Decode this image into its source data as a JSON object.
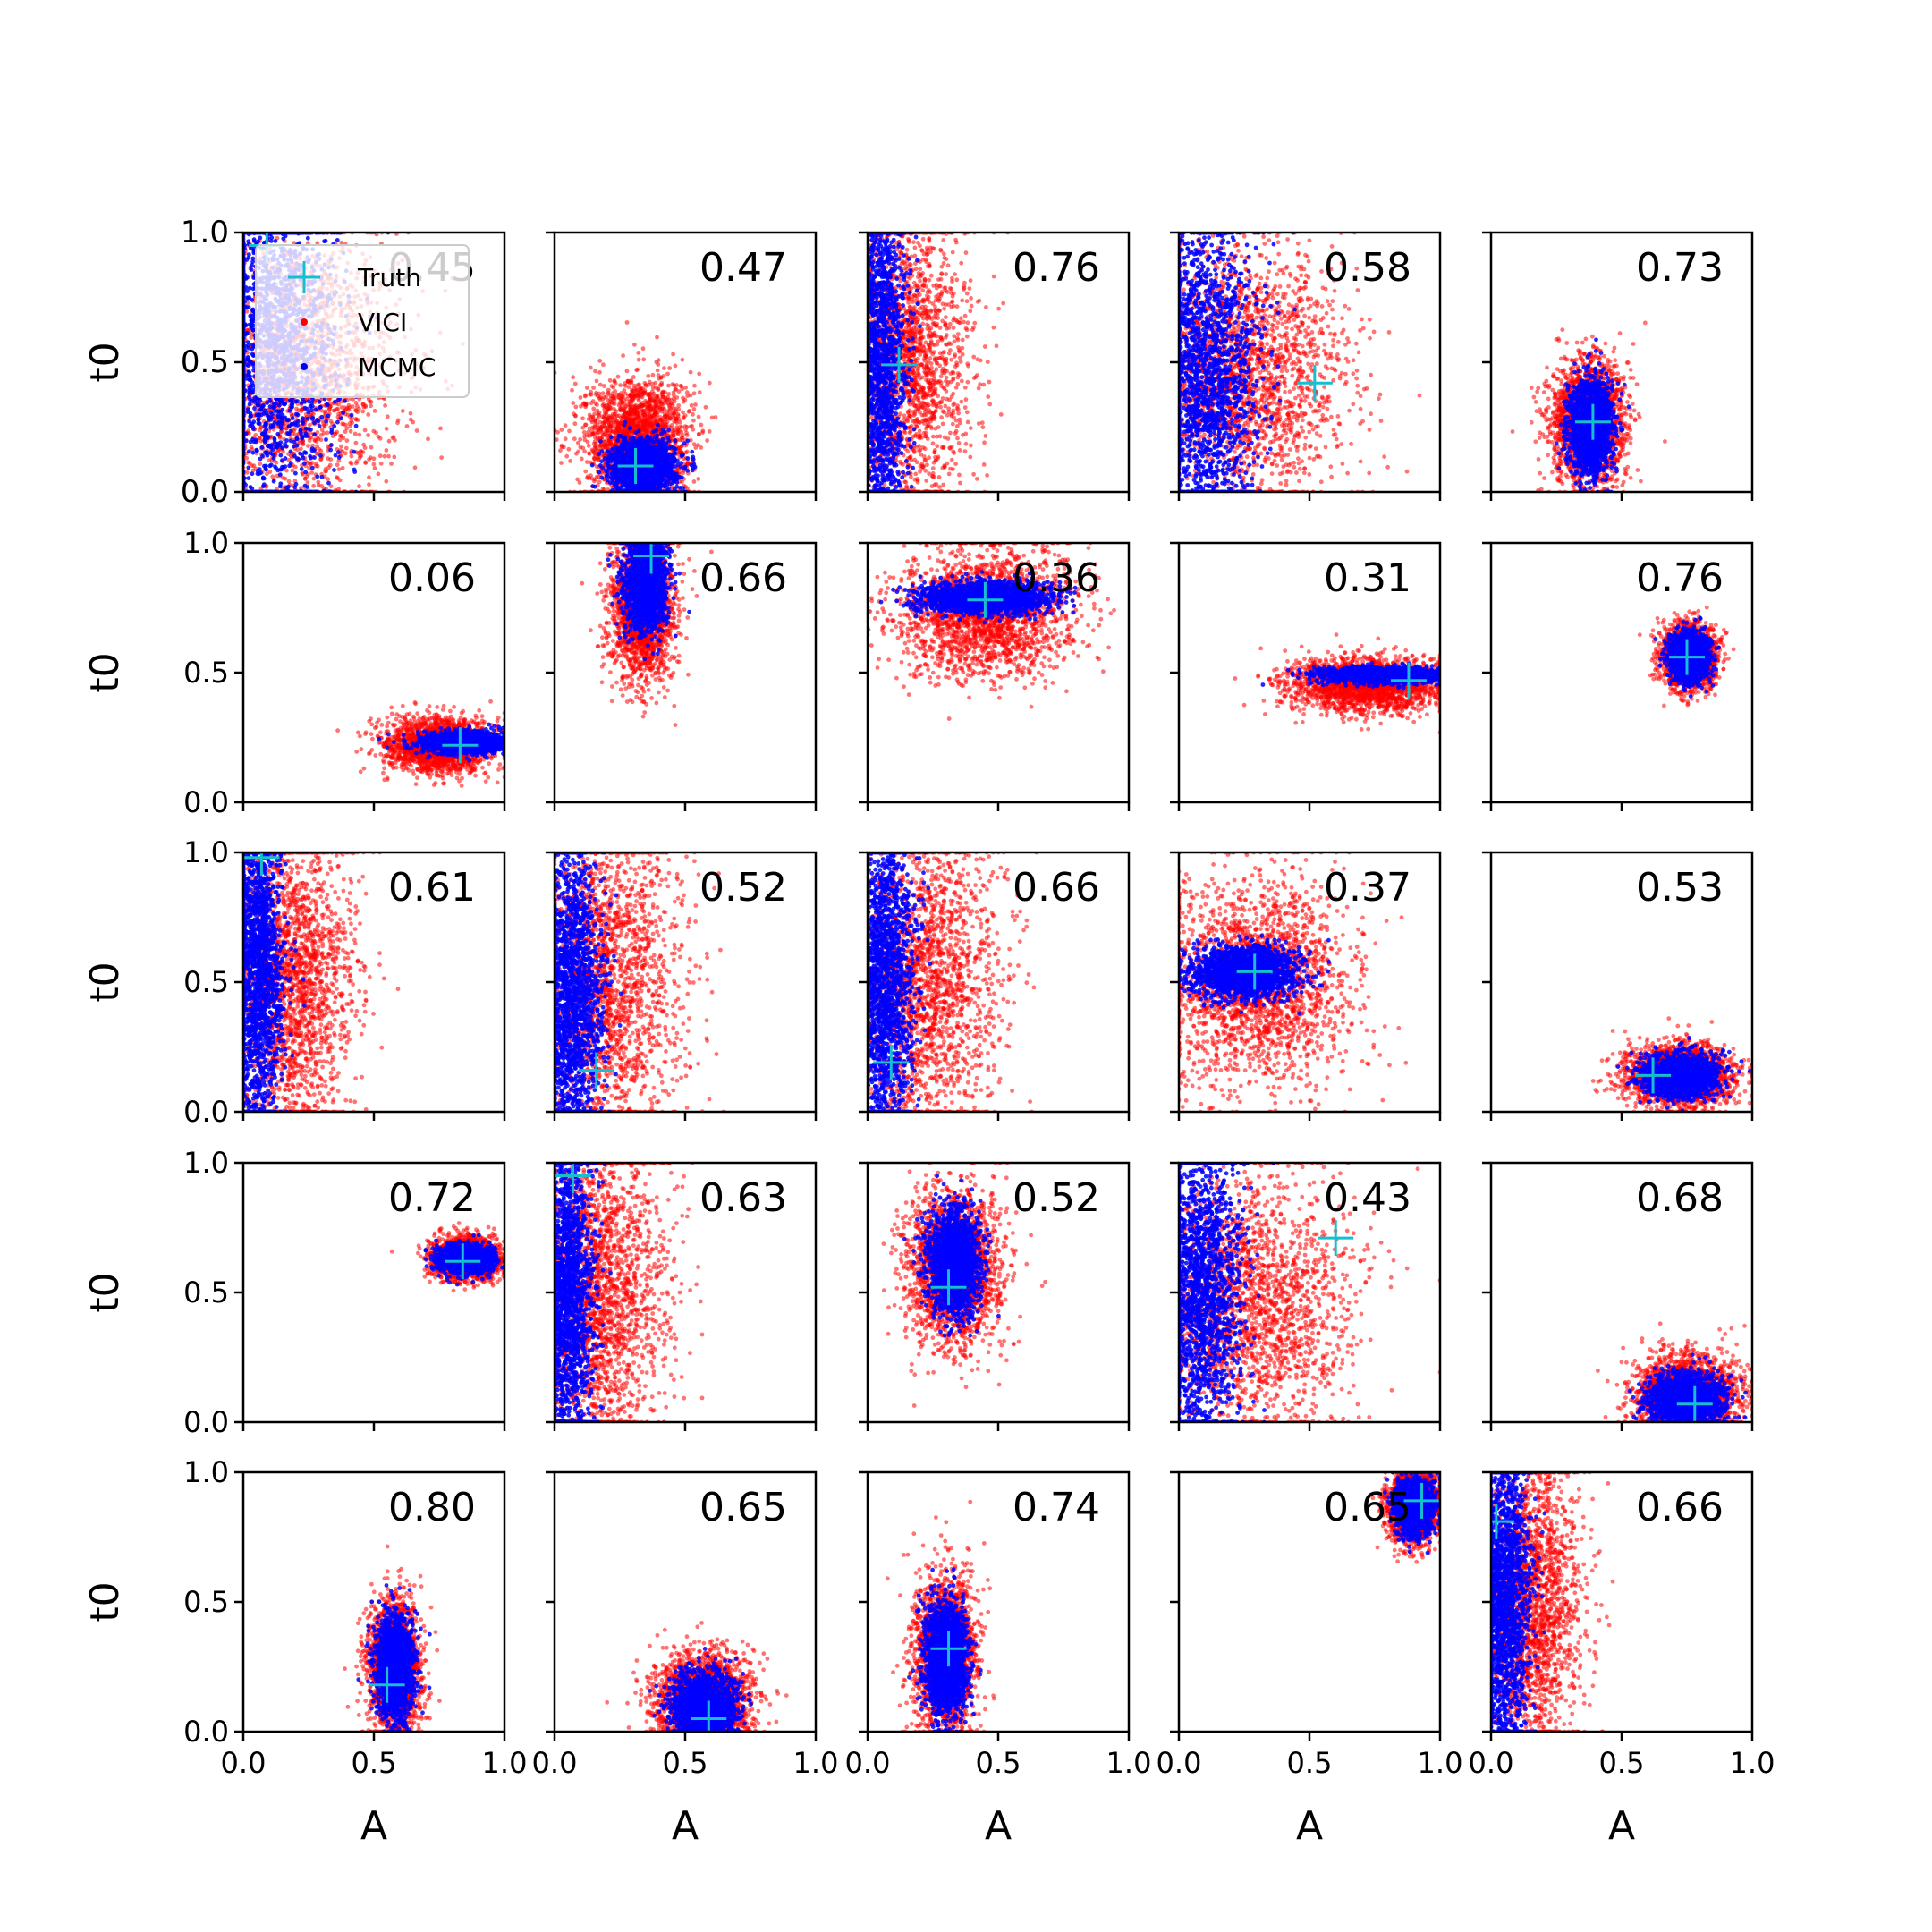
{
  "chart_data": {
    "type": "scatter",
    "layout": "5x5 grid of scatter panels",
    "xlabel": "A",
    "ylabel": "t0",
    "xlim": [
      0.0,
      1.0
    ],
    "ylim": [
      0.0,
      1.0
    ],
    "x_tick_labels": [
      "0.0",
      "0.5",
      "1.0"
    ],
    "y_tick_labels": [
      "0.0",
      "0.5",
      "1.0"
    ],
    "grid": false,
    "legend": {
      "placement": "top-left of first panel",
      "entries": [
        {
          "label": "Truth",
          "marker": "plus",
          "color": "#17becf"
        },
        {
          "label": "VICI",
          "marker": "dot",
          "color": "#ff0000"
        },
        {
          "label": "MCMC",
          "marker": "dot",
          "color": "#0000ff"
        }
      ]
    },
    "colors": {
      "truth": "#17becf",
      "vici": "#ff0000",
      "mcmc": "#0000ff"
    },
    "panels": [
      {
        "row": 0,
        "col": 0,
        "value": "0.45",
        "truth": [
          0.09,
          0.95
        ],
        "vici": {
          "cx": 0.2,
          "cy": 0.45,
          "sx": 0.2,
          "sy": 0.28
        },
        "mcmc": {
          "cx": 0.12,
          "cy": 0.55,
          "sx": 0.12,
          "sy": 0.35
        }
      },
      {
        "row": 0,
        "col": 1,
        "value": "0.47",
        "truth": [
          0.31,
          0.1
        ],
        "vici": {
          "cx": 0.32,
          "cy": 0.2,
          "sx": 0.1,
          "sy": 0.12
        },
        "mcmc": {
          "cx": 0.34,
          "cy": 0.1,
          "sx": 0.06,
          "sy": 0.05
        }
      },
      {
        "row": 0,
        "col": 2,
        "value": "0.76",
        "truth": [
          0.12,
          0.49
        ],
        "vici": {
          "cx": 0.15,
          "cy": 0.5,
          "sx": 0.12,
          "sy": 0.3
        },
        "mcmc": {
          "cx": 0.05,
          "cy": 0.5,
          "sx": 0.05,
          "sy": 0.35
        }
      },
      {
        "row": 0,
        "col": 3,
        "value": "0.58",
        "truth": [
          0.52,
          0.42
        ],
        "vici": {
          "cx": 0.25,
          "cy": 0.45,
          "sx": 0.2,
          "sy": 0.25
        },
        "mcmc": {
          "cx": 0.1,
          "cy": 0.45,
          "sx": 0.1,
          "sy": 0.3
        }
      },
      {
        "row": 0,
        "col": 4,
        "value": "0.73",
        "truth": [
          0.39,
          0.27
        ],
        "vici": {
          "cx": 0.37,
          "cy": 0.27,
          "sx": 0.07,
          "sy": 0.12
        },
        "mcmc": {
          "cx": 0.38,
          "cy": 0.25,
          "sx": 0.04,
          "sy": 0.09
        }
      },
      {
        "row": 1,
        "col": 0,
        "value": "0.06",
        "truth": [
          0.83,
          0.22
        ],
        "vici": {
          "cx": 0.75,
          "cy": 0.22,
          "sx": 0.1,
          "sy": 0.05
        },
        "mcmc": {
          "cx": 0.85,
          "cy": 0.23,
          "sx": 0.08,
          "sy": 0.02
        }
      },
      {
        "row": 1,
        "col": 1,
        "value": "0.66",
        "truth": [
          0.37,
          0.95
        ],
        "vici": {
          "cx": 0.34,
          "cy": 0.75,
          "sx": 0.06,
          "sy": 0.14
        },
        "mcmc": {
          "cx": 0.35,
          "cy": 0.85,
          "sx": 0.04,
          "sy": 0.09
        }
      },
      {
        "row": 1,
        "col": 2,
        "value": "0.36",
        "truth": [
          0.45,
          0.78
        ],
        "vici": {
          "cx": 0.45,
          "cy": 0.73,
          "sx": 0.17,
          "sy": 0.12
        },
        "mcmc": {
          "cx": 0.45,
          "cy": 0.79,
          "sx": 0.12,
          "sy": 0.03
        }
      },
      {
        "row": 1,
        "col": 3,
        "value": "0.31",
        "truth": [
          0.88,
          0.47
        ],
        "vici": {
          "cx": 0.72,
          "cy": 0.45,
          "sx": 0.15,
          "sy": 0.05
        },
        "mcmc": {
          "cx": 0.78,
          "cy": 0.49,
          "sx": 0.12,
          "sy": 0.015
        }
      },
      {
        "row": 1,
        "col": 4,
        "value": "0.76",
        "truth": [
          0.75,
          0.56
        ],
        "vici": {
          "cx": 0.76,
          "cy": 0.56,
          "sx": 0.05,
          "sy": 0.06
        },
        "mcmc": {
          "cx": 0.76,
          "cy": 0.56,
          "sx": 0.035,
          "sy": 0.045
        }
      },
      {
        "row": 2,
        "col": 0,
        "value": "0.61",
        "truth": [
          0.07,
          0.98
        ],
        "vici": {
          "cx": 0.18,
          "cy": 0.5,
          "sx": 0.12,
          "sy": 0.3
        },
        "mcmc": {
          "cx": 0.05,
          "cy": 0.55,
          "sx": 0.05,
          "sy": 0.3
        }
      },
      {
        "row": 2,
        "col": 1,
        "value": "0.52",
        "truth": [
          0.16,
          0.16
        ],
        "vici": {
          "cx": 0.18,
          "cy": 0.5,
          "sx": 0.15,
          "sy": 0.3
        },
        "mcmc": {
          "cx": 0.06,
          "cy": 0.45,
          "sx": 0.06,
          "sy": 0.3
        }
      },
      {
        "row": 2,
        "col": 2,
        "value": "0.66",
        "truth": [
          0.09,
          0.19
        ],
        "vici": {
          "cx": 0.2,
          "cy": 0.5,
          "sx": 0.15,
          "sy": 0.3
        },
        "mcmc": {
          "cx": 0.06,
          "cy": 0.5,
          "sx": 0.06,
          "sy": 0.3
        }
      },
      {
        "row": 2,
        "col": 3,
        "value": "0.37",
        "truth": [
          0.29,
          0.54
        ],
        "vici": {
          "cx": 0.3,
          "cy": 0.5,
          "sx": 0.18,
          "sy": 0.2
        },
        "mcmc": {
          "cx": 0.25,
          "cy": 0.54,
          "sx": 0.1,
          "sy": 0.05
        }
      },
      {
        "row": 2,
        "col": 4,
        "value": "0.53",
        "truth": [
          0.62,
          0.14
        ],
        "vici": {
          "cx": 0.72,
          "cy": 0.14,
          "sx": 0.1,
          "sy": 0.06
        },
        "mcmc": {
          "cx": 0.72,
          "cy": 0.14,
          "sx": 0.07,
          "sy": 0.04
        }
      },
      {
        "row": 3,
        "col": 0,
        "value": "0.72",
        "truth": [
          0.84,
          0.62
        ],
        "vici": {
          "cx": 0.85,
          "cy": 0.63,
          "sx": 0.06,
          "sy": 0.04
        },
        "mcmc": {
          "cx": 0.85,
          "cy": 0.63,
          "sx": 0.05,
          "sy": 0.025
        }
      },
      {
        "row": 3,
        "col": 1,
        "value": "0.63",
        "truth": [
          0.07,
          0.95
        ],
        "vici": {
          "cx": 0.16,
          "cy": 0.5,
          "sx": 0.13,
          "sy": 0.3
        },
        "mcmc": {
          "cx": 0.05,
          "cy": 0.5,
          "sx": 0.05,
          "sy": 0.3
        }
      },
      {
        "row": 3,
        "col": 2,
        "value": "0.52",
        "truth": [
          0.31,
          0.52
        ],
        "vici": {
          "cx": 0.33,
          "cy": 0.6,
          "sx": 0.09,
          "sy": 0.15
        },
        "mcmc": {
          "cx": 0.33,
          "cy": 0.62,
          "sx": 0.05,
          "sy": 0.1
        }
      },
      {
        "row": 3,
        "col": 3,
        "value": "0.43",
        "truth": [
          0.6,
          0.71
        ],
        "vici": {
          "cx": 0.25,
          "cy": 0.45,
          "sx": 0.2,
          "sy": 0.25
        },
        "mcmc": {
          "cx": 0.08,
          "cy": 0.5,
          "sx": 0.08,
          "sy": 0.3
        }
      },
      {
        "row": 3,
        "col": 4,
        "value": "0.68",
        "truth": [
          0.78,
          0.07
        ],
        "vici": {
          "cx": 0.75,
          "cy": 0.1,
          "sx": 0.1,
          "sy": 0.08
        },
        "mcmc": {
          "cx": 0.75,
          "cy": 0.09,
          "sx": 0.07,
          "sy": 0.05
        }
      },
      {
        "row": 4,
        "col": 0,
        "value": "0.80",
        "truth": [
          0.55,
          0.18
        ],
        "vici": {
          "cx": 0.58,
          "cy": 0.25,
          "sx": 0.05,
          "sy": 0.12
        },
        "mcmc": {
          "cx": 0.58,
          "cy": 0.25,
          "sx": 0.035,
          "sy": 0.1
        }
      },
      {
        "row": 4,
        "col": 1,
        "value": "0.65",
        "truth": [
          0.59,
          0.05
        ],
        "vici": {
          "cx": 0.57,
          "cy": 0.12,
          "sx": 0.09,
          "sy": 0.09
        },
        "mcmc": {
          "cx": 0.57,
          "cy": 0.1,
          "sx": 0.06,
          "sy": 0.06
        }
      },
      {
        "row": 4,
        "col": 2,
        "value": "0.74",
        "truth": [
          0.31,
          0.32
        ],
        "vici": {
          "cx": 0.3,
          "cy": 0.3,
          "sx": 0.06,
          "sy": 0.15
        },
        "mcmc": {
          "cx": 0.3,
          "cy": 0.28,
          "sx": 0.04,
          "sy": 0.11
        }
      },
      {
        "row": 4,
        "col": 3,
        "value": "0.65",
        "truth": [
          0.93,
          0.89
        ],
        "vici": {
          "cx": 0.9,
          "cy": 0.87,
          "sx": 0.05,
          "sy": 0.07
        },
        "mcmc": {
          "cx": 0.9,
          "cy": 0.87,
          "sx": 0.035,
          "sy": 0.05
        }
      },
      {
        "row": 4,
        "col": 4,
        "value": "0.66",
        "truth": [
          0.02,
          0.81
        ],
        "vici": {
          "cx": 0.15,
          "cy": 0.5,
          "sx": 0.1,
          "sy": 0.3
        },
        "mcmc": {
          "cx": 0.05,
          "cy": 0.5,
          "sx": 0.05,
          "sy": 0.3
        }
      }
    ]
  }
}
